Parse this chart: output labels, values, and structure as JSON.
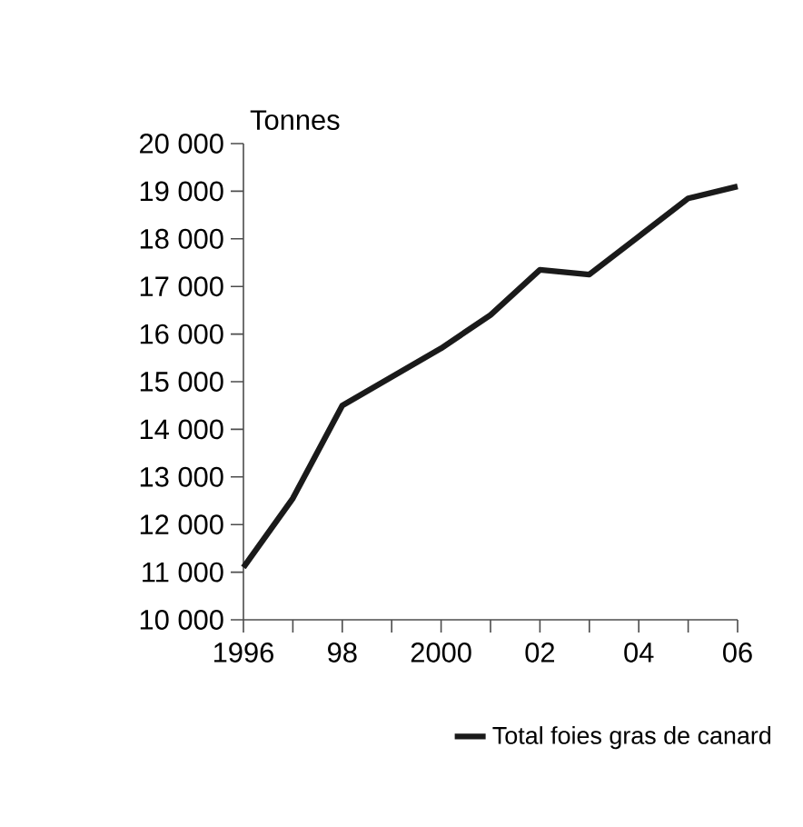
{
  "chart_data": {
    "type": "line",
    "ylabel": "Tonnes",
    "categories": [
      "1996",
      null,
      "98",
      null,
      "2000",
      null,
      "02",
      null,
      "04",
      null,
      "06"
    ],
    "series": [
      {
        "name": "Total foies gras de canard",
        "color": "#1a1a1a",
        "values": [
          11100,
          12550,
          14500,
          15100,
          15700,
          16400,
          17350,
          17250,
          18050,
          18850,
          19100
        ]
      }
    ],
    "ylim": [
      10000,
      20000
    ],
    "yticks": [
      {
        "value": 10000,
        "label": "10 000"
      },
      {
        "value": 11000,
        "label": "11 000"
      },
      {
        "value": 12000,
        "label": "12 000"
      },
      {
        "value": 13000,
        "label": "13 000"
      },
      {
        "value": 14000,
        "label": "14 000"
      },
      {
        "value": 15000,
        "label": "15 000"
      },
      {
        "value": 16000,
        "label": "16 000"
      },
      {
        "value": 17000,
        "label": "17 000"
      },
      {
        "value": 18000,
        "label": "18 000"
      },
      {
        "value": 19000,
        "label": "19 000"
      },
      {
        "value": 20000,
        "label": "20 000"
      }
    ],
    "legend": "bottom",
    "marker": "none",
    "line_style": "solid"
  }
}
